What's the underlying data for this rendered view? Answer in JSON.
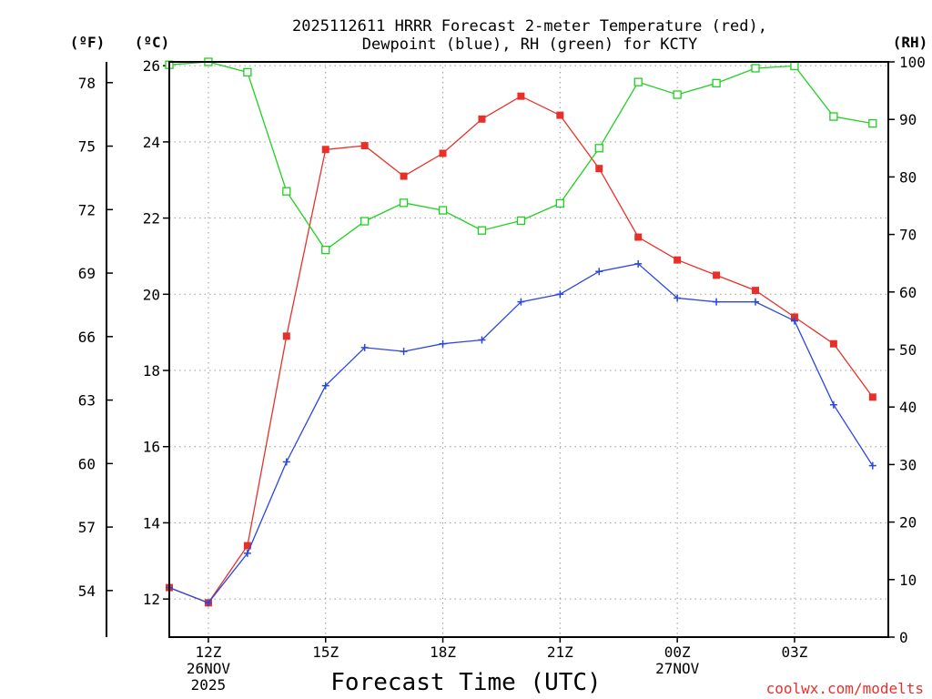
{
  "chart_data": {
    "type": "line",
    "title_lines": [
      "2025112611 HRRR Forecast 2-meter Temperature (red),",
      "Dewpoint (blue), RH (green) for KCTY"
    ],
    "xlabel": "Forecast Time (UTC)",
    "credit": "coolwx.com/modelts",
    "units": {
      "fahrenheit": "(ºF)",
      "celsius": "(ºC)",
      "rh": "(RH)"
    },
    "x": [
      11,
      12,
      13,
      14,
      15,
      16,
      17,
      18,
      19,
      20,
      21,
      22,
      23,
      24,
      25,
      26,
      27,
      28,
      29
    ],
    "xlim": [
      11,
      29.4
    ],
    "x_ticks": [
      {
        "x": 12,
        "lines": [
          "12Z",
          "26NOV",
          "2025"
        ]
      },
      {
        "x": 15,
        "lines": [
          "15Z"
        ]
      },
      {
        "x": 18,
        "lines": [
          "18Z"
        ]
      },
      {
        "x": 21,
        "lines": [
          "21Z"
        ]
      },
      {
        "x": 24,
        "lines": [
          "00Z",
          "27NOV"
        ]
      },
      {
        "x": 27,
        "lines": [
          "03Z"
        ]
      }
    ],
    "celsius_axis": {
      "min": 11,
      "max": 26.1,
      "ticks": [
        "12",
        "14",
        "16",
        "18",
        "20",
        "22",
        "24",
        "26"
      ]
    },
    "fahrenheit_axis": {
      "ticks": [
        "54",
        "57",
        "60",
        "63",
        "66",
        "69",
        "72",
        "75",
        "78"
      ]
    },
    "rh_axis": {
      "min": 0,
      "max": 100,
      "ticks": [
        "0",
        "10",
        "20",
        "30",
        "40",
        "50",
        "60",
        "70",
        "80",
        "90",
        "100"
      ]
    },
    "series": [
      {
        "name": "Temperature (°C)",
        "color": "#e8302b",
        "marker": "filled-square",
        "axis": "celsius",
        "values": [
          12.3,
          11.9,
          13.4,
          18.9,
          23.8,
          23.9,
          23.1,
          23.7,
          24.6,
          25.2,
          24.7,
          23.3,
          21.5,
          20.9,
          20.5,
          20.1,
          19.4,
          18.7,
          17.3
        ]
      },
      {
        "name": "Dewpoint (°C)",
        "color": "#2b46e0",
        "marker": "plus",
        "axis": "celsius",
        "values": [
          12.3,
          11.9,
          13.2,
          15.6,
          17.6,
          18.6,
          18.5,
          18.7,
          18.8,
          19.8,
          20.0,
          20.6,
          20.8,
          19.9,
          19.8,
          19.8,
          19.3,
          17.1,
          15.5
        ]
      },
      {
        "name": "RH (%)",
        "color": "#1fd01f",
        "marker": "open-square",
        "axis": "rh",
        "values": [
          99.5,
          100,
          98.2,
          77.5,
          67.3,
          72.3,
          75.5,
          74.2,
          70.7,
          72.4,
          75.4,
          85.0,
          96.5,
          94.3,
          96.3,
          98.9,
          99.3,
          90.5,
          89.3
        ]
      }
    ]
  }
}
